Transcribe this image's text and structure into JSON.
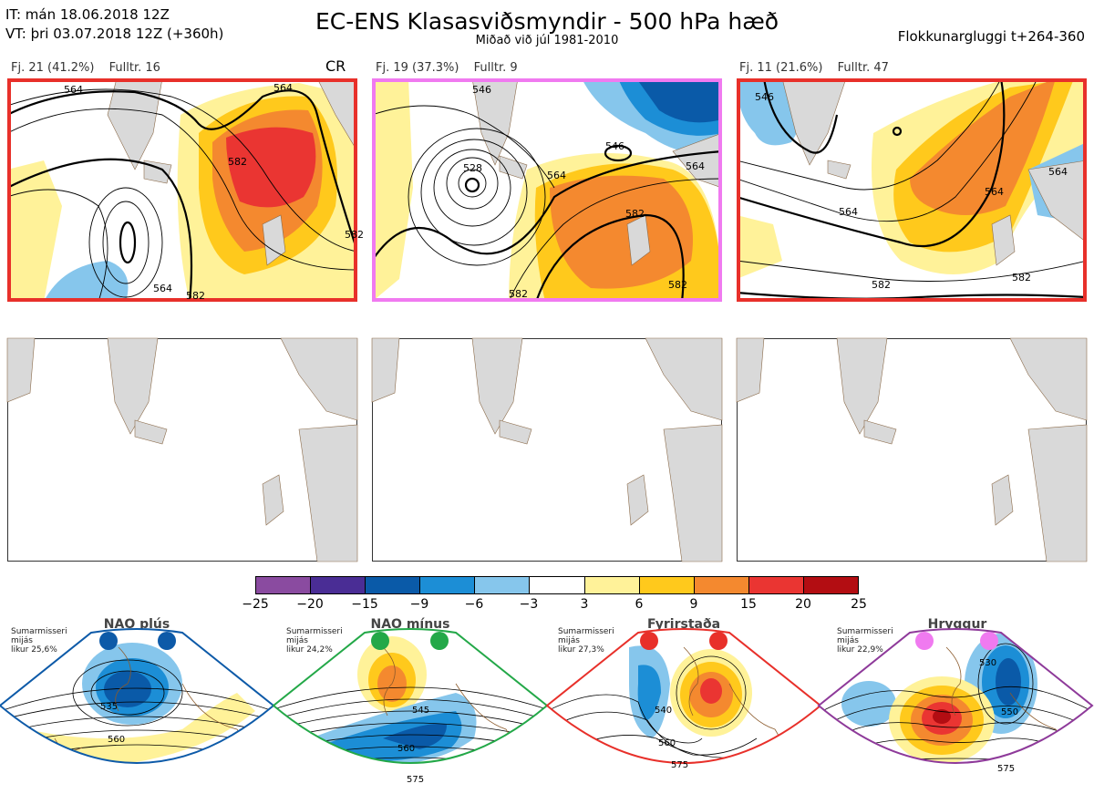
{
  "header": {
    "it_line": "IT: mán 18.06.2018 12Z",
    "vt_line": "VT: þri 03.07.2018 12Z  (+360h)",
    "title": "EC-ENS Klasasviðsmyndir - 500 hPa hæð",
    "subtitle": "Miðað við júl 1981-2010",
    "window": "Flokkunargluggi t+264-360"
  },
  "clusters": [
    {
      "count_label": "Fj. 21 (41.2%)",
      "rep_label": "Fulltr. 16",
      "tag": "CR",
      "border_color": "#e8302a",
      "contour_labels": [
        "564",
        "564",
        "582",
        "564",
        "582",
        "582"
      ]
    },
    {
      "count_label": "Fj. 19 (37.3%)",
      "rep_label": "Fulltr. 9",
      "tag": "",
      "border_color": "#f07af0",
      "contour_labels": [
        "528",
        "546",
        "564",
        "564",
        "546",
        "582",
        "582",
        "582"
      ]
    },
    {
      "count_label": "Fj. 11 (21.6%)",
      "rep_label": "Fulltr. 47",
      "tag": "",
      "border_color": "#e8302a",
      "contour_labels": [
        "546",
        "564",
        "564",
        "582",
        "582",
        "564"
      ]
    }
  ],
  "colorbar": {
    "labels": [
      "−25",
      "−20",
      "−15",
      "−9",
      "−6",
      "−3",
      "3",
      "6",
      "9",
      "15",
      "20",
      "25"
    ],
    "colors": [
      "#8a4ba0",
      "#4a2d95",
      "#0a5aa8",
      "#1c8ed6",
      "#86c6ec",
      "#ffffff",
      "#fff299",
      "#ffc91c",
      "#f4892f",
      "#ea3532",
      "#b30d12"
    ]
  },
  "regimes": [
    {
      "name": "NAO plús",
      "side": [
        "Sumarmisseri",
        "mijás",
        "likur 25,6%"
      ],
      "color": "#0d5aa8",
      "contour_labels": [
        "535",
        "560"
      ]
    },
    {
      "name": "NAO mínus",
      "side": [
        "Sumarmisseri",
        "mijás",
        "likur 24,2%"
      ],
      "color": "#23a848",
      "contour_labels": [
        "545",
        "560",
        "575"
      ]
    },
    {
      "name": "Fyrirstaða",
      "side": [
        "Sumarmisseri",
        "mijás",
        "likur 27,3%"
      ],
      "color": "#e8302a",
      "contour_labels": [
        "540",
        "560",
        "575"
      ]
    },
    {
      "name": "Hryggur",
      "side": [
        "Sumarmisseri",
        "mijás",
        "likur 22,9%"
      ],
      "color": "#8e3a9a",
      "contour_labels": [
        "530",
        "550",
        "575"
      ]
    }
  ]
}
